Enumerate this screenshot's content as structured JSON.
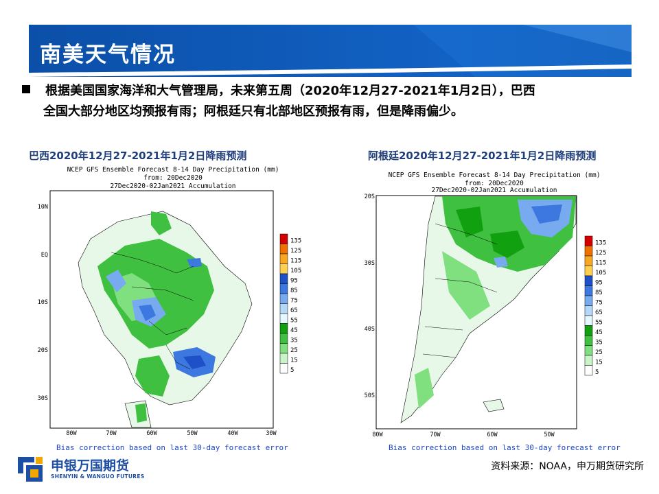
{
  "title": "南美天气情况",
  "bullet": {
    "line1": "根据美国国家海洋和大气管理局，未来第五周（2020年12月27-2021年1月2日），巴西",
    "line2": "全国大部分地区均预报有雨；阿根廷只有北部地区预报有雨，但是降雨偏少。"
  },
  "brazil": {
    "title": "巴西2020年12月27-2021年1月2日降雨预测",
    "header1": "NCEP GFS Ensemble Forecast 8-14 Day Precipitation (mm)",
    "header2": "from: 20Dec2020",
    "header3": "27Dec2020-02Jan2021 Accumulation",
    "lat_labels": [
      "10N",
      "EQ",
      "10S",
      "20S",
      "30S"
    ],
    "lon_labels": [
      "80W",
      "70W",
      "60W",
      "50W",
      "40W",
      "30W"
    ],
    "footer": "Bias correction based on last 30-day forecast error"
  },
  "argentina": {
    "title": "阿根廷2020年12月27-2021年1月2日降雨预测",
    "header1": "NCEP GFS Ensemble Forecast 8-14 Day Precipitation (mm)",
    "header2": "from: 20Dec2020",
    "header3": "27Dec2020-02Jan2021 Accumulation",
    "lat_labels": [
      "20S",
      "30S",
      "40S",
      "50S"
    ],
    "lon_labels": [
      "80W",
      "70W",
      "60W",
      "50W"
    ],
    "footer": "Bias correction based on last 30-day forecast error"
  },
  "legend": {
    "values": [
      "135",
      "125",
      "115",
      "105",
      "95",
      "85",
      "75",
      "65",
      "55",
      "45",
      "35",
      "25",
      "15",
      "5"
    ],
    "colors": [
      "#d40000",
      "#f07000",
      "#f8a820",
      "#ffd050",
      "#1e50c8",
      "#3c78e0",
      "#78aaf0",
      "#b4d8f8",
      "#e6f8ff",
      "#10a010",
      "#40c040",
      "#80e080",
      "#c8f4c8",
      "#ffffff"
    ]
  },
  "source": "资料来源：NOAA，申万期货研究所",
  "logo": {
    "cn": "申银万国期货",
    "en": "SHENYIN & WANGUO FUTURES"
  }
}
